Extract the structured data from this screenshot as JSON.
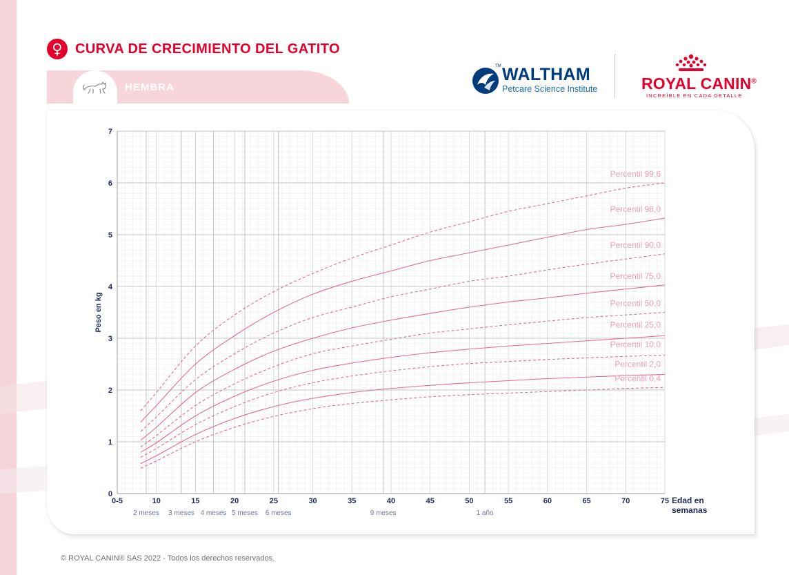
{
  "header": {
    "title": "CURVA DE CRECIMIENTO DEL GATITO",
    "gender_icon": "female-symbol-icon",
    "gender_symbol": "♀",
    "tab_label": "HEMBRA",
    "tab_icon": "kitten-icon"
  },
  "logos": {
    "waltham_name": "WALTHAM",
    "waltham_tm": "TM",
    "waltham_sub": "Petcare Science Institute",
    "royal_canin_name": "ROYAL CANIN",
    "royal_canin_reg": "®",
    "royal_canin_tagline": "INCREÍBLE EN CADA DETALLE"
  },
  "colors": {
    "brand_red": "#e4002b",
    "navy": "#1c2a57",
    "curve": "#e36a8e",
    "curve_label": "#ea9fb3",
    "tab_pink": "#f7d5da",
    "waltham_blue": "#003b7c"
  },
  "chart_data": {
    "type": "line",
    "title": "CURVA DE CRECIMIENTO DEL GATITO",
    "subtitle": "HEMBRA",
    "xlabel": "Edad en semanas",
    "xlabel_lines": [
      "Edad en",
      "semanas"
    ],
    "ylabel": "Peso en kg",
    "xlim": [
      5,
      75
    ],
    "ylim": [
      0,
      7
    ],
    "grid": true,
    "x_ticks": [
      {
        "value": 5,
        "label": "0-5"
      },
      {
        "value": 10,
        "label": "10"
      },
      {
        "value": 15,
        "label": "15"
      },
      {
        "value": 20,
        "label": "20"
      },
      {
        "value": 25,
        "label": "25"
      },
      {
        "value": 30,
        "label": "30"
      },
      {
        "value": 35,
        "label": "35"
      },
      {
        "value": 40,
        "label": "40"
      },
      {
        "value": 45,
        "label": "45"
      },
      {
        "value": 50,
        "label": "50"
      },
      {
        "value": 55,
        "label": "55"
      },
      {
        "value": 60,
        "label": "60"
      },
      {
        "value": 65,
        "label": "65"
      },
      {
        "value": 70,
        "label": "70"
      },
      {
        "value": 75,
        "label": "75"
      }
    ],
    "y_ticks": [
      {
        "value": 0,
        "label": "0"
      },
      {
        "value": 1,
        "label": "1"
      },
      {
        "value": 2,
        "label": "2"
      },
      {
        "value": 3,
        "label": "3"
      },
      {
        "value": 4,
        "label": "4"
      },
      {
        "value": 5,
        "label": "5"
      },
      {
        "value": 6,
        "label": "6"
      },
      {
        "value": 7,
        "label": "7"
      }
    ],
    "age_markers": [
      {
        "week": 8.7,
        "label": "2 meses"
      },
      {
        "week": 13.2,
        "label": "3 meses"
      },
      {
        "week": 17.3,
        "label": "4 meses"
      },
      {
        "week": 21.3,
        "label": "5 meses"
      },
      {
        "week": 25.6,
        "label": "6 meses"
      },
      {
        "week": 39,
        "label": "9 meses"
      },
      {
        "week": 52,
        "label": "1 año"
      }
    ],
    "x": [
      8,
      10,
      15,
      20,
      25,
      30,
      35,
      40,
      45,
      50,
      55,
      60,
      65,
      70,
      75
    ],
    "series": [
      {
        "name": "Percentil 99,6",
        "style": "dashed",
        "values": [
          1.6,
          1.95,
          2.85,
          3.45,
          3.9,
          4.25,
          4.55,
          4.8,
          5.05,
          5.25,
          5.45,
          5.6,
          5.75,
          5.9,
          6.0
        ]
      },
      {
        "name": "Percentil 98,0",
        "style": "solid",
        "values": [
          1.38,
          1.7,
          2.5,
          3.05,
          3.5,
          3.85,
          4.1,
          4.3,
          4.5,
          4.65,
          4.8,
          4.95,
          5.1,
          5.2,
          5.32
        ]
      },
      {
        "name": "Percentil 90,0",
        "style": "dashed",
        "values": [
          1.2,
          1.48,
          2.2,
          2.7,
          3.1,
          3.4,
          3.6,
          3.8,
          3.95,
          4.1,
          4.2,
          4.32,
          4.43,
          4.53,
          4.63
        ]
      },
      {
        "name": "Percentil 75,0",
        "style": "solid",
        "values": [
          1.03,
          1.28,
          1.95,
          2.4,
          2.75,
          3.0,
          3.2,
          3.35,
          3.48,
          3.6,
          3.7,
          3.78,
          3.87,
          3.95,
          4.03
        ]
      },
      {
        "name": "Percentil 50,0",
        "style": "dashed",
        "values": [
          0.9,
          1.12,
          1.7,
          2.12,
          2.45,
          2.7,
          2.85,
          2.98,
          3.1,
          3.18,
          3.26,
          3.33,
          3.4,
          3.45,
          3.5
        ]
      },
      {
        "name": "Percentil 25,0",
        "style": "solid",
        "values": [
          0.8,
          0.98,
          1.5,
          1.88,
          2.17,
          2.38,
          2.52,
          2.63,
          2.72,
          2.79,
          2.85,
          2.9,
          2.95,
          3.0,
          3.05
        ]
      },
      {
        "name": "Percentil 10,0",
        "style": "dashed",
        "values": [
          0.7,
          0.87,
          1.33,
          1.68,
          1.95,
          2.14,
          2.27,
          2.37,
          2.45,
          2.51,
          2.55,
          2.59,
          2.62,
          2.65,
          2.67
        ]
      },
      {
        "name": "Percentil 2,0",
        "style": "solid",
        "values": [
          0.58,
          0.73,
          1.14,
          1.45,
          1.68,
          1.84,
          1.95,
          2.03,
          2.09,
          2.14,
          2.18,
          2.22,
          2.25,
          2.28,
          2.3
        ]
      },
      {
        "name": "Percentil 0,4",
        "style": "dashed",
        "values": [
          0.49,
          0.63,
          1.0,
          1.28,
          1.49,
          1.64,
          1.74,
          1.81,
          1.87,
          1.91,
          1.94,
          1.97,
          2.0,
          2.03,
          2.05
        ]
      }
    ]
  },
  "footer": {
    "copyright": "© ROYAL CANIN® SAS 2022 - Todos los derechos reservados."
  }
}
